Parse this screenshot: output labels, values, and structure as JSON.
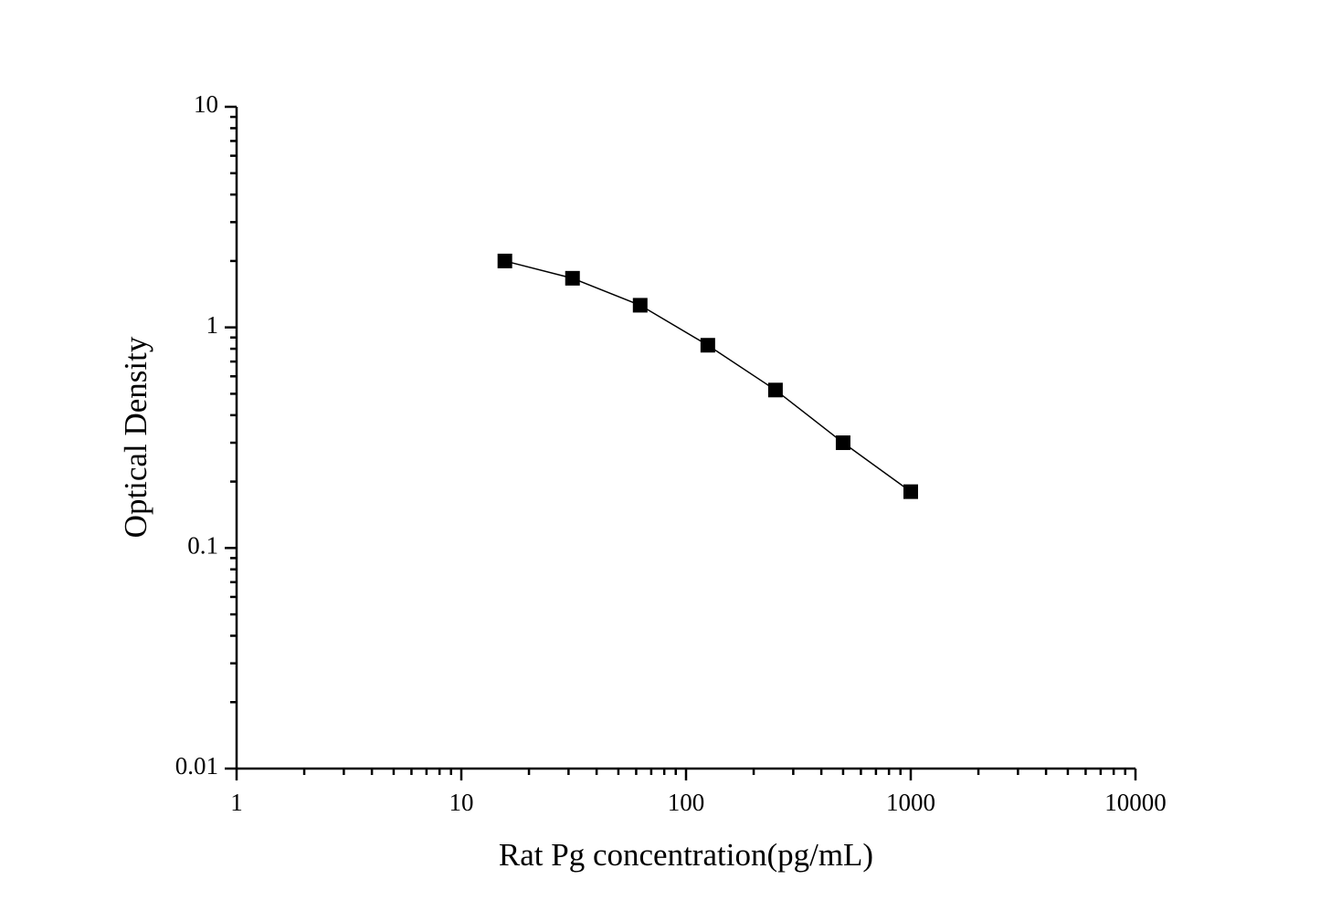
{
  "chart_data": {
    "type": "line",
    "x_label": "Rat Pg concentration(pg/mL)",
    "y_label": "Optical Density",
    "x": [
      15.625,
      31.25,
      62.5,
      125,
      250,
      500,
      1000
    ],
    "series": [
      {
        "color": "#000000",
        "marker": "square",
        "values": [
          2.0,
          1.67,
          1.26,
          0.83,
          0.52,
          0.3,
          0.18
        ]
      }
    ],
    "xlim": [
      1,
      10000
    ],
    "ylim": [
      0.01,
      10
    ],
    "xticks": [
      1,
      10,
      100,
      1000,
      10000
    ],
    "yticks": [
      0.01,
      0.1,
      1,
      10
    ],
    "xscale": "log",
    "yscale": "log",
    "grid": false
  }
}
